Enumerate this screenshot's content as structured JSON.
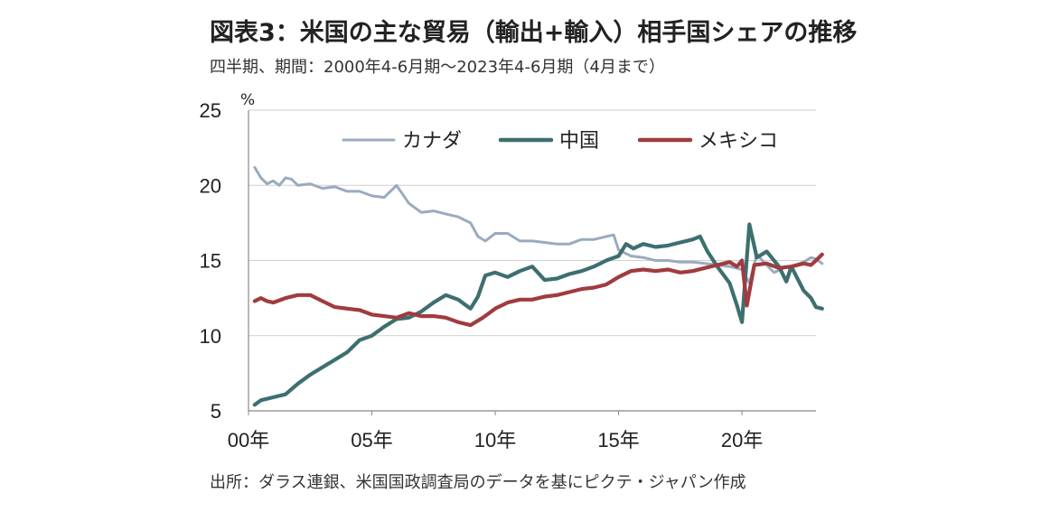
{
  "title": "図表3：米国の主な貿易（輸出+輸入）相手国シェアの推移",
  "subtitle": "四半期、期間：2000年4-6月期～2023年4-6月期（4月まで）",
  "source": "出所：ダラス連銀、米国国政調査局のデータを基にピクテ・ジャパン作成",
  "chart_data": {
    "type": "line",
    "title": "図表3：米国の主な貿易（輸出+輸入）相手国シェアの推移",
    "y_unit": "%",
    "ylim": [
      5,
      25
    ],
    "xlim": [
      2000.25,
      2023.25
    ],
    "yticks": [
      5,
      10,
      15,
      20,
      25
    ],
    "xticks": [
      {
        "value": 2000,
        "label": "00年"
      },
      {
        "value": 2005,
        "label": "05年"
      },
      {
        "value": 2010,
        "label": "10年"
      },
      {
        "value": 2015,
        "label": "15年"
      },
      {
        "value": 2020,
        "label": "20年"
      }
    ],
    "grid": "horizontal",
    "legend_position": "top",
    "series": [
      {
        "name": "カナダ",
        "color": "#9aabbf",
        "points": [
          [
            2000.25,
            21.2
          ],
          [
            2000.5,
            20.5
          ],
          [
            2000.75,
            20.1
          ],
          [
            2001,
            20.3
          ],
          [
            2001.25,
            20.0
          ],
          [
            2001.5,
            20.5
          ],
          [
            2001.75,
            20.4
          ],
          [
            2002,
            20.0
          ],
          [
            2002.5,
            20.1
          ],
          [
            2003,
            19.8
          ],
          [
            2003.5,
            19.9
          ],
          [
            2004,
            19.6
          ],
          [
            2004.5,
            19.6
          ],
          [
            2005,
            19.3
          ],
          [
            2005.5,
            19.2
          ],
          [
            2006,
            20.0
          ],
          [
            2006.5,
            18.8
          ],
          [
            2007,
            18.2
          ],
          [
            2007.5,
            18.3
          ],
          [
            2008,
            18.1
          ],
          [
            2008.5,
            17.9
          ],
          [
            2009,
            17.5
          ],
          [
            2009.3,
            16.6
          ],
          [
            2009.6,
            16.3
          ],
          [
            2010,
            16.8
          ],
          [
            2010.5,
            16.8
          ],
          [
            2011,
            16.3
          ],
          [
            2011.5,
            16.3
          ],
          [
            2012,
            16.2
          ],
          [
            2012.5,
            16.1
          ],
          [
            2013,
            16.1
          ],
          [
            2013.5,
            16.4
          ],
          [
            2014,
            16.4
          ],
          [
            2014.5,
            16.6
          ],
          [
            2014.8,
            16.7
          ],
          [
            2015,
            15.7
          ],
          [
            2015.5,
            15.3
          ],
          [
            2016,
            15.2
          ],
          [
            2016.5,
            15.0
          ],
          [
            2017,
            15.0
          ],
          [
            2017.5,
            14.9
          ],
          [
            2018,
            14.9
          ],
          [
            2018.5,
            14.8
          ],
          [
            2019,
            14.7
          ],
          [
            2019.5,
            14.6
          ],
          [
            2020,
            14.4
          ],
          [
            2020.3,
            13.5
          ],
          [
            2020.6,
            15.4
          ],
          [
            2021,
            14.7
          ],
          [
            2021.3,
            14.2
          ],
          [
            2021.7,
            14.5
          ],
          [
            2022,
            14.6
          ],
          [
            2022.5,
            14.9
          ],
          [
            2022.8,
            15.2
          ],
          [
            2023,
            15.1
          ],
          [
            2023.25,
            14.8
          ]
        ]
      },
      {
        "name": "中国",
        "color": "#3e6f70",
        "points": [
          [
            2000.25,
            5.4
          ],
          [
            2000.5,
            5.7
          ],
          [
            2001,
            5.9
          ],
          [
            2001.5,
            6.1
          ],
          [
            2002,
            6.8
          ],
          [
            2002.5,
            7.4
          ],
          [
            2003,
            7.9
          ],
          [
            2003.5,
            8.4
          ],
          [
            2004,
            8.9
          ],
          [
            2004.5,
            9.7
          ],
          [
            2005,
            10.0
          ],
          [
            2005.5,
            10.6
          ],
          [
            2006,
            11.1
          ],
          [
            2006.5,
            11.2
          ],
          [
            2007,
            11.6
          ],
          [
            2007.5,
            12.2
          ],
          [
            2008,
            12.7
          ],
          [
            2008.5,
            12.4
          ],
          [
            2009,
            11.8
          ],
          [
            2009.3,
            12.6
          ],
          [
            2009.6,
            14.0
          ],
          [
            2010,
            14.2
          ],
          [
            2010.5,
            13.9
          ],
          [
            2011,
            14.3
          ],
          [
            2011.5,
            14.6
          ],
          [
            2012,
            13.7
          ],
          [
            2012.5,
            13.8
          ],
          [
            2013,
            14.1
          ],
          [
            2013.5,
            14.3
          ],
          [
            2014,
            14.6
          ],
          [
            2014.5,
            15.0
          ],
          [
            2015,
            15.3
          ],
          [
            2015.3,
            16.1
          ],
          [
            2015.6,
            15.8
          ],
          [
            2016,
            16.1
          ],
          [
            2016.5,
            15.9
          ],
          [
            2017,
            16.0
          ],
          [
            2017.5,
            16.2
          ],
          [
            2018,
            16.4
          ],
          [
            2018.3,
            16.6
          ],
          [
            2018.6,
            15.6
          ],
          [
            2019,
            14.6
          ],
          [
            2019.5,
            13.5
          ],
          [
            2019.8,
            12.0
          ],
          [
            2020,
            10.9
          ],
          [
            2020.3,
            17.4
          ],
          [
            2020.6,
            15.2
          ],
          [
            2021,
            15.6
          ],
          [
            2021.5,
            14.6
          ],
          [
            2021.8,
            13.6
          ],
          [
            2022,
            14.6
          ],
          [
            2022.5,
            13.0
          ],
          [
            2022.8,
            12.5
          ],
          [
            2023,
            11.9
          ],
          [
            2023.25,
            11.8
          ]
        ]
      },
      {
        "name": "メキシコ",
        "color": "#a03b3f",
        "points": [
          [
            2000.25,
            12.3
          ],
          [
            2000.5,
            12.5
          ],
          [
            2000.75,
            12.3
          ],
          [
            2001,
            12.2
          ],
          [
            2001.5,
            12.5
          ],
          [
            2002,
            12.7
          ],
          [
            2002.5,
            12.7
          ],
          [
            2003,
            12.3
          ],
          [
            2003.5,
            11.9
          ],
          [
            2004,
            11.8
          ],
          [
            2004.5,
            11.7
          ],
          [
            2005,
            11.4
          ],
          [
            2005.5,
            11.3
          ],
          [
            2006,
            11.2
          ],
          [
            2006.5,
            11.5
          ],
          [
            2007,
            11.3
          ],
          [
            2007.5,
            11.3
          ],
          [
            2008,
            11.2
          ],
          [
            2008.5,
            10.9
          ],
          [
            2009,
            10.7
          ],
          [
            2009.5,
            11.2
          ],
          [
            2010,
            11.8
          ],
          [
            2010.5,
            12.2
          ],
          [
            2011,
            12.4
          ],
          [
            2011.5,
            12.4
          ],
          [
            2012,
            12.6
          ],
          [
            2012.5,
            12.7
          ],
          [
            2013,
            12.9
          ],
          [
            2013.5,
            13.1
          ],
          [
            2014,
            13.2
          ],
          [
            2014.5,
            13.4
          ],
          [
            2015,
            13.9
          ],
          [
            2015.5,
            14.3
          ],
          [
            2016,
            14.4
          ],
          [
            2016.5,
            14.3
          ],
          [
            2017,
            14.4
          ],
          [
            2017.5,
            14.2
          ],
          [
            2018,
            14.3
          ],
          [
            2018.5,
            14.5
          ],
          [
            2019,
            14.7
          ],
          [
            2019.5,
            14.9
          ],
          [
            2019.8,
            14.6
          ],
          [
            2020,
            15.0
          ],
          [
            2020.2,
            12.0
          ],
          [
            2020.5,
            14.7
          ],
          [
            2021,
            14.8
          ],
          [
            2021.5,
            14.5
          ],
          [
            2022,
            14.6
          ],
          [
            2022.5,
            14.8
          ],
          [
            2022.8,
            14.7
          ],
          [
            2023,
            15.0
          ],
          [
            2023.25,
            15.4
          ]
        ]
      }
    ]
  }
}
